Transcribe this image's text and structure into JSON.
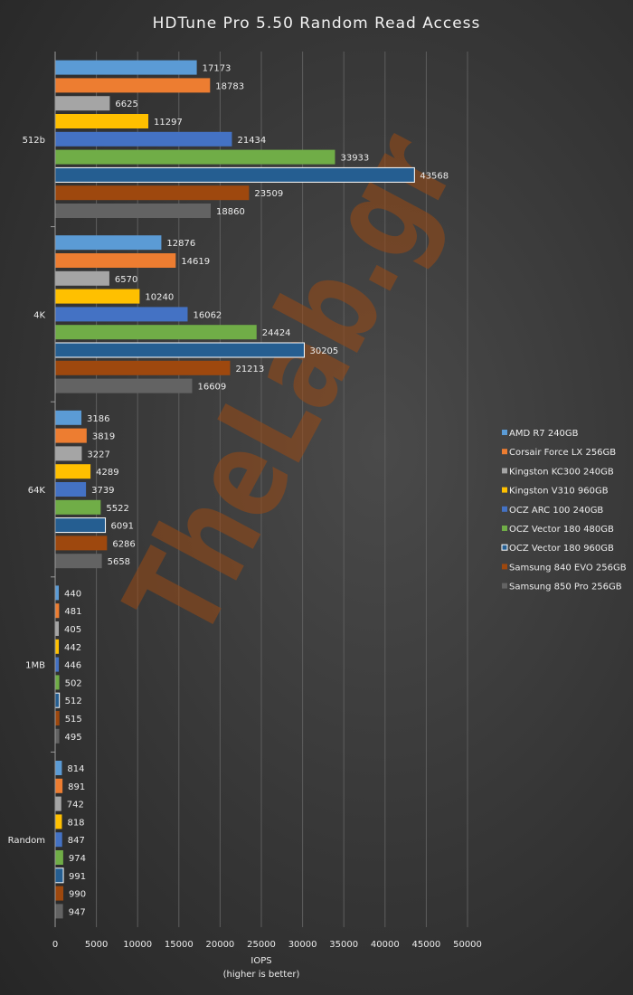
{
  "watermark": "TheLab.gr",
  "chart_data": {
    "type": "bar",
    "orientation": "horizontal",
    "title": "HDTune Pro 5.50 Random Read Access",
    "xlabel": "IOPS",
    "xlabel_note": "(higher is better)",
    "xlim": [
      0,
      50000
    ],
    "x_ticks": [
      0,
      5000,
      10000,
      15000,
      20000,
      25000,
      30000,
      35000,
      40000,
      45000,
      50000
    ],
    "grid": true,
    "legend_position": "right",
    "categories": [
      "512b",
      "4K",
      "64K",
      "1MB",
      "Random"
    ],
    "series": [
      {
        "name": "AMD R7 240GB",
        "color": "#5b9bd5",
        "values": [
          17173,
          12876,
          3186,
          440,
          814
        ]
      },
      {
        "name": "Corsair Force LX 256GB",
        "color": "#ed7d31",
        "values": [
          18783,
          14619,
          3819,
          481,
          891
        ]
      },
      {
        "name": "Kingston KC300 240GB",
        "color": "#a5a5a5",
        "values": [
          6625,
          6570,
          3227,
          405,
          742
        ]
      },
      {
        "name": "Kingston V310 960GB",
        "color": "#ffc000",
        "values": [
          11297,
          10240,
          4289,
          442,
          818
        ]
      },
      {
        "name": "OCZ ARC 100 240GB",
        "color": "#4472c4",
        "values": [
          21434,
          16062,
          3739,
          446,
          847
        ]
      },
      {
        "name": "OCZ Vector 180 480GB",
        "color": "#70ad47",
        "values": [
          33933,
          24424,
          5522,
          502,
          974
        ]
      },
      {
        "name": "OCZ Vector 180 960GB",
        "color": "#255e91",
        "values": [
          43568,
          30205,
          6091,
          512,
          991
        ]
      },
      {
        "name": "Samsung 840 EVO 256GB",
        "color": "#9e480e",
        "values": [
          23509,
          21213,
          6286,
          515,
          990
        ]
      },
      {
        "name": "Samsung 850 Pro 256GB",
        "color": "#636363",
        "values": [
          18860,
          16609,
          5658,
          495,
          947
        ]
      }
    ]
  }
}
